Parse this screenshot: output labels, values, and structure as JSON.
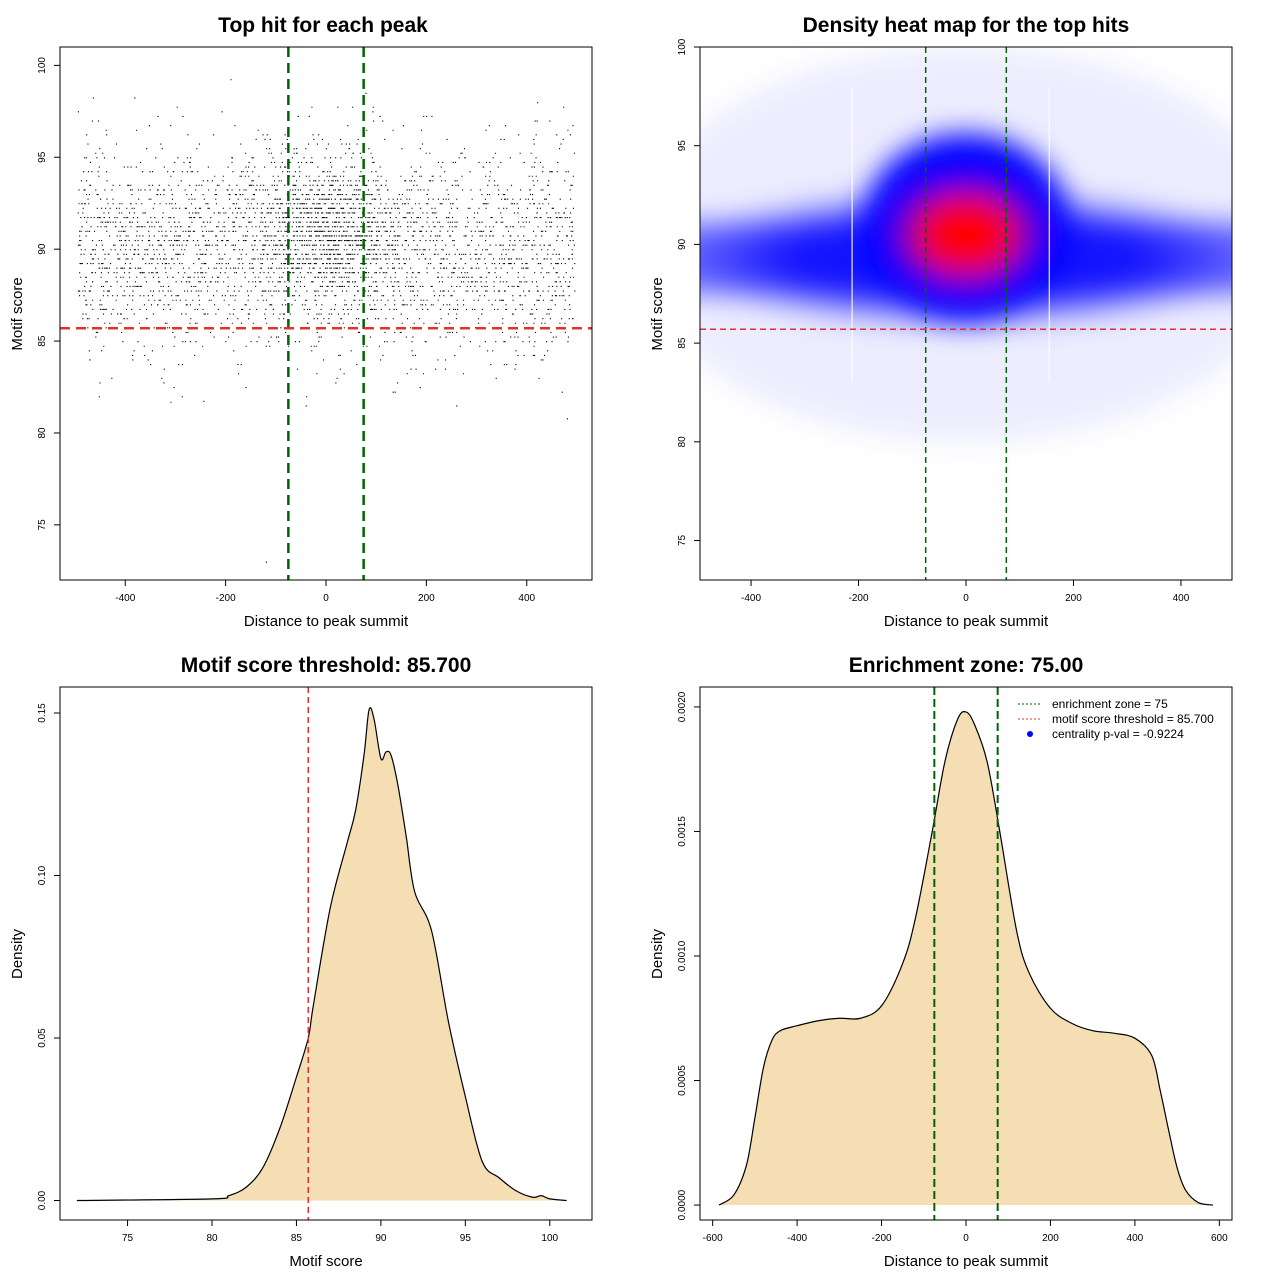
{
  "colors": {
    "threshold_line": "#e03030",
    "zone_line": "#006400",
    "density_fill": "#f5deb3",
    "heat_low": "#ffffff",
    "heat_mid": "#0000ff",
    "heat_high": "#ff0000",
    "point": "#000000",
    "legend_marker": "#0000ff"
  },
  "chart_data": [
    {
      "id": "scatter",
      "type": "scatter",
      "title": "Top hit for each peak",
      "xlabel": "Distance to peak summit",
      "ylabel": "Motif score",
      "xlim": [
        -530,
        530
      ],
      "ylim": [
        72,
        101
      ],
      "xticks": [
        "-400",
        "-200",
        "0",
        "200",
        "400"
      ],
      "xtick_values": [
        -400,
        -200,
        0,
        200,
        400
      ],
      "yticks": [
        "75",
        "80",
        "85",
        "90",
        "95",
        "100"
      ],
      "ytick_values": [
        75,
        80,
        85,
        90,
        95,
        100
      ],
      "hlines": [
        85.7
      ],
      "vlines": [
        -75,
        75
      ],
      "x_support": [
        -495,
        495
      ],
      "y_center": 90,
      "y_sd": 2.8,
      "core_center": [
        0,
        91
      ],
      "point_count_approx": 12000
    },
    {
      "id": "heatmap",
      "type": "heatmap",
      "title": "Density heat map for the top hits",
      "xlabel": "Distance to peak summit",
      "ylabel": "Motif score",
      "xlim": [
        -495,
        495
      ],
      "ylim": [
        73,
        100
      ],
      "xticks": [
        "-400",
        "-200",
        "0",
        "200",
        "400"
      ],
      "xtick_values": [
        -400,
        -200,
        0,
        200,
        400
      ],
      "yticks": [
        "75",
        "80",
        "85",
        "90",
        "95",
        "100"
      ],
      "ytick_values": [
        75,
        80,
        85,
        90,
        95,
        100
      ],
      "hlines": [
        85.7
      ],
      "vlines": [
        -75,
        75
      ],
      "hotspot": [
        0,
        90.5
      ],
      "band_center": 89.3
    },
    {
      "id": "score_density",
      "type": "area",
      "title": "Motif score threshold: 85.700",
      "xlabel": "Motif score",
      "ylabel": "Density",
      "xlim": [
        71,
        102.5
      ],
      "ylim": [
        -0.006,
        0.158
      ],
      "xticks": [
        "75",
        "80",
        "85",
        "90",
        "95",
        "100"
      ],
      "xtick_values": [
        75,
        80,
        85,
        90,
        95,
        100
      ],
      "yticks": [
        "0.00",
        "0.05",
        "0.10",
        "0.15"
      ],
      "ytick_values": [
        0,
        0.05,
        0.1,
        0.15
      ],
      "vlines": [
        85.7
      ],
      "x": [
        72,
        80,
        81,
        82,
        83,
        84,
        85,
        85.7,
        86,
        87,
        88,
        88.5,
        89,
        89.3,
        89.6,
        90,
        90.3,
        90.6,
        91,
        91.5,
        92,
        93,
        94,
        95,
        96,
        97,
        98,
        99,
        99.5,
        100,
        101
      ],
      "y": [
        0,
        0.0005,
        0.0015,
        0.004,
        0.01,
        0.022,
        0.038,
        0.05,
        0.06,
        0.09,
        0.11,
        0.12,
        0.137,
        0.151,
        0.148,
        0.136,
        0.138,
        0.137,
        0.128,
        0.112,
        0.095,
        0.083,
        0.055,
        0.032,
        0.012,
        0.007,
        0.003,
        0.001,
        0.0015,
        0.0005,
        0
      ]
    },
    {
      "id": "distance_density",
      "type": "area",
      "title": "Enrichment zone: 75.00",
      "xlabel": "Distance to peak summit",
      "ylabel": "Density",
      "xlim": [
        -630,
        630
      ],
      "ylim": [
        -6e-05,
        0.00208
      ],
      "xticks": [
        "-600",
        "-400",
        "-200",
        "0",
        "200",
        "400",
        "600"
      ],
      "xtick_values": [
        -600,
        -400,
        -200,
        0,
        200,
        400,
        600
      ],
      "yticks": [
        "0.0000",
        "0.0005",
        "0.0010",
        "0.0015",
        "0.0020"
      ],
      "ytick_values": [
        0,
        0.0005,
        0.001,
        0.0015,
        0.002
      ],
      "vlines": [
        -75,
        75
      ],
      "x": [
        -585,
        -550,
        -520,
        -500,
        -480,
        -460,
        -440,
        -400,
        -350,
        -300,
        -250,
        -200,
        -150,
        -120,
        -80,
        -50,
        -20,
        0,
        20,
        50,
        80,
        120,
        150,
        200,
        250,
        300,
        350,
        400,
        440,
        460,
        480,
        500,
        520,
        550,
        585
      ],
      "y": [
        0,
        4e-05,
        0.00016,
        0.00035,
        0.00055,
        0.00066,
        0.0007,
        0.00072,
        0.00074,
        0.00075,
        0.00075,
        0.0008,
        0.00097,
        0.00115,
        0.0015,
        0.00178,
        0.00195,
        0.00198,
        0.00193,
        0.00178,
        0.0015,
        0.0011,
        0.00093,
        0.00079,
        0.00073,
        0.0007,
        0.00069,
        0.00067,
        0.0006,
        0.00046,
        0.0003,
        0.00015,
        6e-05,
        1e-05,
        0
      ],
      "legend": {
        "position": "top-right",
        "items": [
          {
            "label": "enrichment zone = 75",
            "marker": "dotted-line",
            "color": "#006400"
          },
          {
            "label": "motif score threshold = 85.700",
            "marker": "dotted-line",
            "color": "#e03030"
          },
          {
            "label": "centrality p-val = -0.9224",
            "marker": "dot",
            "color": "#0000ff"
          }
        ]
      }
    }
  ]
}
